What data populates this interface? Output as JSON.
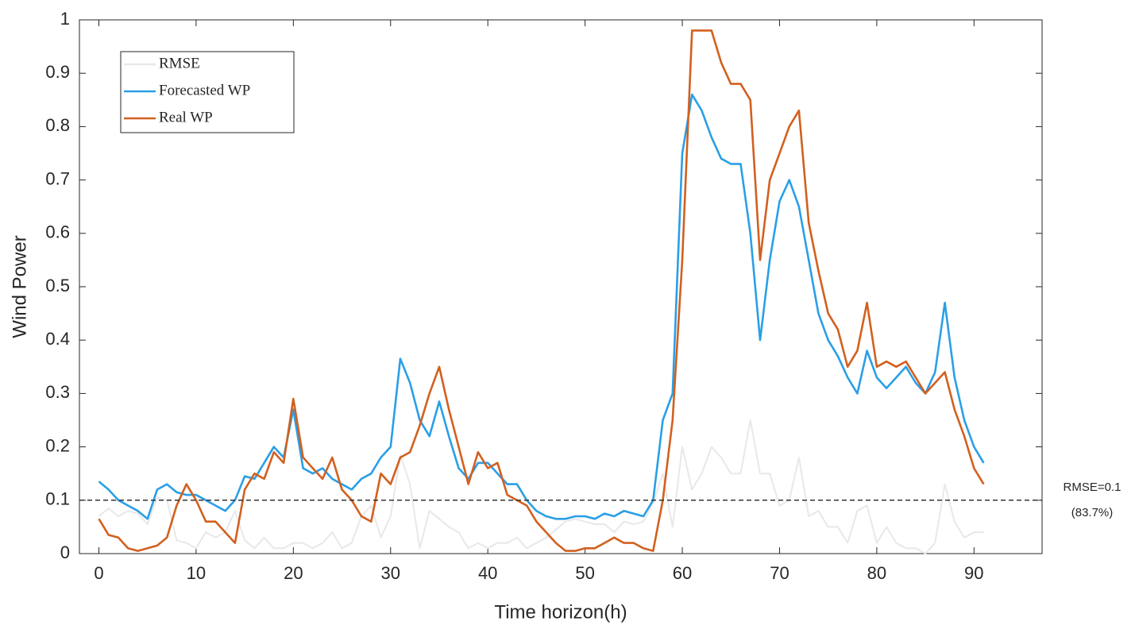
{
  "chart_data": {
    "type": "line",
    "xlabel": "Time horizon(h)",
    "ylabel": "Wind Power",
    "x": [
      0,
      1,
      2,
      3,
      4,
      5,
      6,
      7,
      8,
      9,
      10,
      11,
      12,
      13,
      14,
      15,
      16,
      17,
      18,
      19,
      20,
      21,
      22,
      23,
      24,
      25,
      26,
      27,
      28,
      29,
      30,
      31,
      32,
      33,
      34,
      35,
      36,
      37,
      38,
      39,
      40,
      41,
      42,
      43,
      44,
      45,
      46,
      47,
      48,
      49,
      50,
      51,
      52,
      53,
      54,
      55,
      56,
      57,
      58,
      59,
      60,
      61,
      62,
      63,
      64,
      65,
      66,
      67,
      68,
      69,
      70,
      71,
      72,
      73,
      74,
      75,
      76,
      77,
      78,
      79,
      80,
      81,
      82,
      83,
      84,
      85,
      86,
      87,
      88,
      89,
      90,
      91
    ],
    "series": [
      {
        "name": "RMSE",
        "color": "#e8e8e8",
        "values": [
          0.07,
          0.085,
          0.07,
          0.08,
          0.075,
          0.055,
          0.105,
          0.1,
          0.025,
          0.02,
          0.01,
          0.04,
          0.03,
          0.04,
          0.08,
          0.025,
          0.01,
          0.03,
          0.01,
          0.01,
          0.02,
          0.02,
          0.01,
          0.02,
          0.04,
          0.01,
          0.02,
          0.07,
          0.09,
          0.03,
          0.07,
          0.185,
          0.13,
          0.01,
          0.08,
          0.065,
          0.05,
          0.04,
          0.01,
          0.02,
          0.01,
          0.02,
          0.02,
          0.03,
          0.01,
          0.02,
          0.03,
          0.045,
          0.06,
          0.065,
          0.06,
          0.055,
          0.055,
          0.04,
          0.06,
          0.055,
          0.06,
          0.095,
          0.15,
          0.05,
          0.2,
          0.12,
          0.15,
          0.2,
          0.18,
          0.15,
          0.15,
          0.25,
          0.15,
          0.15,
          0.09,
          0.1,
          0.18,
          0.07,
          0.08,
          0.05,
          0.05,
          0.02,
          0.08,
          0.09,
          0.02,
          0.05,
          0.02,
          0.01,
          0.01,
          0,
          0.02,
          0.13,
          0.06,
          0.03,
          0.04,
          0.04
        ]
      },
      {
        "name": "Forecasted WP",
        "color": "#2a9fe6",
        "values": [
          0.135,
          0.12,
          0.1,
          0.09,
          0.08,
          0.065,
          0.12,
          0.13,
          0.115,
          0.11,
          0.11,
          0.1,
          0.09,
          0.08,
          0.1,
          0.145,
          0.14,
          0.17,
          0.2,
          0.18,
          0.27,
          0.16,
          0.15,
          0.16,
          0.14,
          0.13,
          0.12,
          0.14,
          0.15,
          0.18,
          0.2,
          0.365,
          0.32,
          0.25,
          0.22,
          0.285,
          0.22,
          0.16,
          0.14,
          0.17,
          0.17,
          0.15,
          0.13,
          0.13,
          0.1,
          0.08,
          0.07,
          0.065,
          0.065,
          0.07,
          0.07,
          0.065,
          0.075,
          0.07,
          0.08,
          0.075,
          0.07,
          0.1,
          0.25,
          0.3,
          0.75,
          0.86,
          0.83,
          0.78,
          0.74,
          0.73,
          0.73,
          0.6,
          0.4,
          0.55,
          0.66,
          0.7,
          0.65,
          0.55,
          0.45,
          0.4,
          0.37,
          0.33,
          0.3,
          0.38,
          0.33,
          0.31,
          0.33,
          0.35,
          0.32,
          0.3,
          0.34,
          0.47,
          0.33,
          0.25,
          0.2,
          0.17
        ]
      },
      {
        "name": "Real WP",
        "color": "#d2601f",
        "values": [
          0.065,
          0.035,
          0.03,
          0.01,
          0.005,
          0.01,
          0.015,
          0.03,
          0.09,
          0.13,
          0.1,
          0.06,
          0.06,
          0.04,
          0.02,
          0.12,
          0.15,
          0.14,
          0.19,
          0.17,
          0.29,
          0.18,
          0.16,
          0.14,
          0.18,
          0.12,
          0.1,
          0.07,
          0.06,
          0.15,
          0.13,
          0.18,
          0.19,
          0.24,
          0.3,
          0.35,
          0.27,
          0.2,
          0.13,
          0.19,
          0.16,
          0.17,
          0.11,
          0.1,
          0.09,
          0.06,
          0.04,
          0.02,
          0.005,
          0.005,
          0.01,
          0.01,
          0.02,
          0.03,
          0.02,
          0.02,
          0.01,
          0.005,
          0.1,
          0.25,
          0.55,
          0.98,
          0.98,
          0.98,
          0.92,
          0.88,
          0.88,
          0.85,
          0.55,
          0.7,
          0.75,
          0.8,
          0.83,
          0.62,
          0.53,
          0.45,
          0.42,
          0.35,
          0.38,
          0.47,
          0.35,
          0.36,
          0.35,
          0.36,
          0.33,
          0.3,
          0.32,
          0.34,
          0.27,
          0.22,
          0.16,
          0.13
        ]
      }
    ],
    "reference_line": {
      "value": 0.1,
      "labels": [
        "RMSE=0.1",
        "(83.7%)"
      ]
    },
    "xlim": [
      -2,
      97
    ],
    "ylim": [
      0,
      1
    ],
    "xticks": [
      0,
      10,
      20,
      30,
      40,
      50,
      60,
      70,
      80,
      90
    ],
    "yticks": [
      0,
      0.1,
      0.2,
      0.3,
      0.4,
      0.5,
      0.6,
      0.7,
      0.8,
      0.9,
      1
    ],
    "legend": "upper left"
  }
}
